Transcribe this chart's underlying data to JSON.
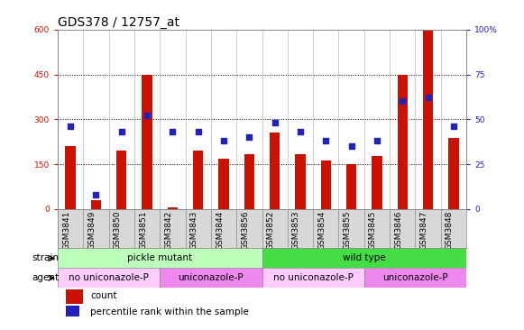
{
  "title": "GDS378 / 12757_at",
  "categories": [
    "GSM3841",
    "GSM3849",
    "GSM3850",
    "GSM3851",
    "GSM3842",
    "GSM3843",
    "GSM3844",
    "GSM3856",
    "GSM3852",
    "GSM3853",
    "GSM3854",
    "GSM3855",
    "GSM3845",
    "GSM3846",
    "GSM3847",
    "GSM3848"
  ],
  "counts": [
    210,
    28,
    195,
    450,
    4,
    195,
    168,
    182,
    255,
    182,
    162,
    150,
    178,
    448,
    600,
    238
  ],
  "percentiles": [
    46,
    8,
    43,
    52,
    43,
    43,
    38,
    40,
    48,
    43,
    38,
    35,
    38,
    60,
    62,
    46
  ],
  "ylim_left": [
    0,
    600
  ],
  "ylim_right": [
    0,
    100
  ],
  "yticks_left": [
    0,
    150,
    300,
    450,
    600
  ],
  "yticks_right": [
    0,
    25,
    50,
    75,
    100
  ],
  "bar_color": "#cc1100",
  "dot_color": "#2222bb",
  "left_tick_color": "#cc1100",
  "right_tick_color": "#2222bb",
  "strain_groups": [
    {
      "label": "pickle mutant",
      "start": 0,
      "end": 8,
      "color": "#bbffbb"
    },
    {
      "label": "wild type",
      "start": 8,
      "end": 16,
      "color": "#44dd44"
    }
  ],
  "agent_groups": [
    {
      "label": "no uniconazole-P",
      "start": 0,
      "end": 4,
      "color": "#ffccff"
    },
    {
      "label": "uniconazole-P",
      "start": 4,
      "end": 8,
      "color": "#ee88ee"
    },
    {
      "label": "no uniconazole-P",
      "start": 8,
      "end": 12,
      "color": "#ffccff"
    },
    {
      "label": "uniconazole-P",
      "start": 12,
      "end": 16,
      "color": "#ee88ee"
    }
  ],
  "legend_count_label": "count",
  "legend_pct_label": "percentile rank within the sample",
  "strain_label": "strain",
  "agent_label": "agent",
  "fig_width": 5.81,
  "fig_height": 3.66,
  "background_color": "#ffffff",
  "plot_bg_color": "#ffffff",
  "xticklabel_bg_color": "#d8d8d8",
  "title_fontsize": 10,
  "tick_fontsize": 6.5,
  "label_fontsize": 7.5,
  "annotation_fontsize": 7.5
}
